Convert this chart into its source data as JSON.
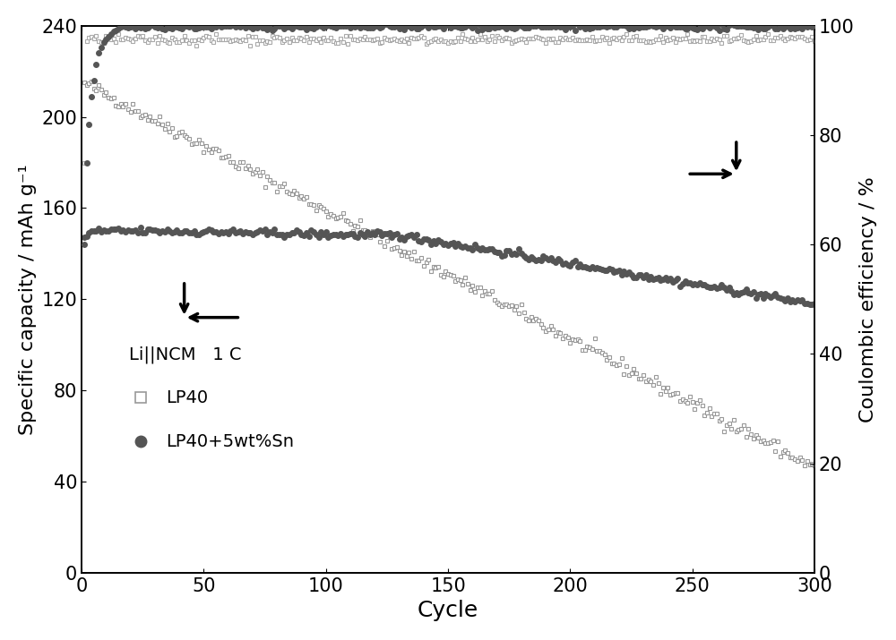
{
  "xlabel": "Cycle",
  "ylabel_left": "Specific capacity / mAh g⁻¹",
  "ylabel_right": "Coulombic efficiency / %",
  "xlim": [
    0,
    300
  ],
  "ylim_left": [
    0,
    240
  ],
  "ylim_right": [
    0,
    100
  ],
  "yticks_left": [
    0,
    40,
    80,
    120,
    160,
    200,
    240
  ],
  "yticks_right": [
    0,
    20,
    40,
    60,
    80,
    100
  ],
  "xticks": [
    0,
    50,
    100,
    150,
    200,
    250,
    300
  ],
  "legend_title": "Li||NCM   1 C",
  "legend_entries": [
    "LP40",
    "LP40+5wt%Sn"
  ],
  "background_color": "#ffffff",
  "color_lp40_marker": "#999999",
  "color_lp40sn_marker": "#555555"
}
